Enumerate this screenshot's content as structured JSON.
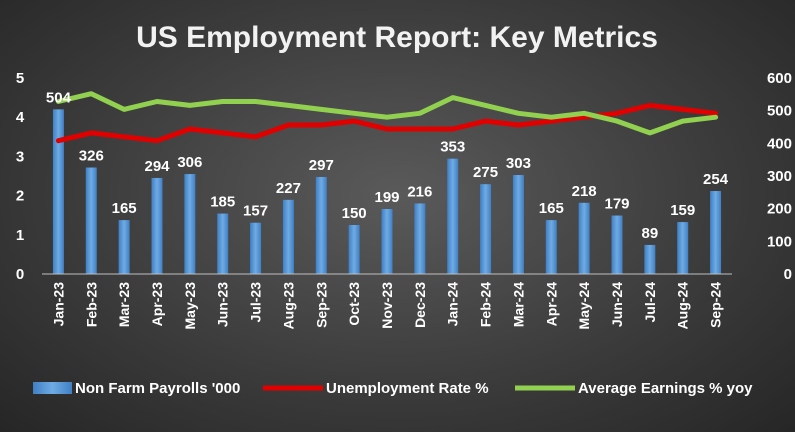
{
  "chart_data": {
    "type": "bar",
    "title": "US Employment Report: Key Metrics",
    "categories": [
      "Jan-23",
      "Feb-23",
      "Mar-23",
      "Apr-23",
      "May-23",
      "Jun-23",
      "Jul-23",
      "Aug-23",
      "Sep-23",
      "Oct-23",
      "Nov-23",
      "Dec-23",
      "Jan-24",
      "Feb-24",
      "Mar-24",
      "Apr-24",
      "May-24",
      "Jun-24",
      "Jul-24",
      "Aug-24",
      "Sep-24"
    ],
    "left_axis": {
      "min": 0,
      "max": 5,
      "ticks": [
        "0",
        "1",
        "2",
        "3",
        "4",
        "5"
      ]
    },
    "right_axis": {
      "min": 0,
      "max": 600,
      "ticks": [
        "0",
        "100",
        "200",
        "300",
        "400",
        "500",
        "600"
      ]
    },
    "grid": false,
    "legend_position": "bottom",
    "series": [
      {
        "name": "Non Farm Payrolls '000",
        "type": "bar",
        "axis": "right",
        "color": "#5b9bd5",
        "show_labels": true,
        "values": [
          504,
          326,
          165,
          294,
          306,
          185,
          157,
          227,
          297,
          150,
          199,
          216,
          353,
          275,
          303,
          165,
          218,
          179,
          89,
          159,
          254
        ]
      },
      {
        "name": "Unemployment Rate %",
        "type": "line",
        "axis": "left",
        "color": "#e00000",
        "values": [
          3.4,
          3.6,
          3.5,
          3.4,
          3.7,
          3.6,
          3.5,
          3.8,
          3.8,
          3.9,
          3.7,
          3.7,
          3.7,
          3.9,
          3.8,
          3.9,
          4.0,
          4.1,
          4.3,
          4.2,
          4.1
        ]
      },
      {
        "name": "Average Earnings % yoy",
        "type": "line",
        "axis": "left",
        "color": "#92d050",
        "values": [
          4.4,
          4.6,
          4.2,
          4.4,
          4.3,
          4.4,
          4.4,
          4.3,
          4.2,
          4.1,
          4.0,
          4.1,
          4.5,
          4.3,
          4.1,
          4.0,
          4.1,
          3.9,
          3.6,
          3.9,
          4.0
        ]
      }
    ]
  }
}
